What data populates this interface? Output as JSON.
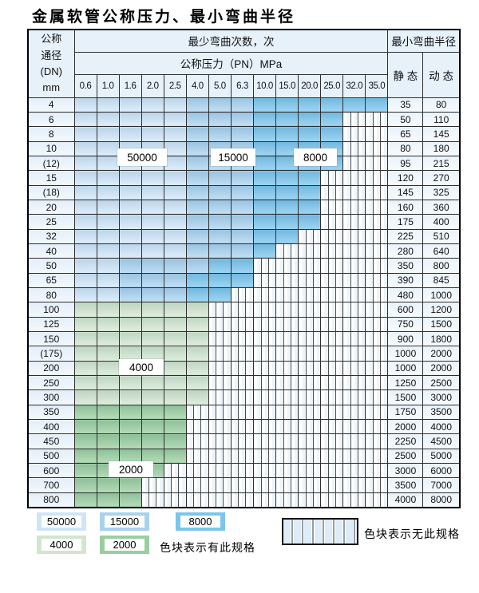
{
  "title": "金属软管公称压力、最小弯曲半径",
  "chart_data": {
    "type": "table",
    "title": "金属软管公称压力、最小弯曲半径",
    "header": {
      "id_lines": [
        "公称",
        "通径",
        "(DN)",
        "mm"
      ],
      "cycles_header": "最少弯曲次数，次",
      "pressure_header": "公称压力（PN）MPa",
      "pressure_cols": [
        "0.6",
        "1.0",
        "1.6",
        "2.0",
        "2.5",
        "4.0",
        "5.0",
        "6.3",
        "10.0",
        "15.0",
        "20.0",
        "25.0",
        "32.0",
        "35.0"
      ],
      "radius_header": "最小弯曲半径",
      "static_label": "静 态",
      "dynamic_label": "动 态"
    },
    "legend_colors": {
      "50000": "#cfe5f7",
      "15000": "#a9d2ee",
      "8000": "#7cc5ec",
      "4000": "#d2e6cf",
      "2000": "#9bce9f"
    },
    "cell_code_to_cycles": {
      "L": "50000",
      "M": "15000",
      "D": "8000",
      "G": "4000",
      "E": "2000",
      "H": "none"
    },
    "region_labels": [
      {
        "text": "50000"
      },
      {
        "text": "15000"
      },
      {
        "text": "8000"
      },
      {
        "text": "4000"
      },
      {
        "text": "2000"
      }
    ],
    "rows": [
      {
        "dn": "4",
        "cells": "LLLLLMMMDDDDDD",
        "static": "35",
        "dynamic": "80"
      },
      {
        "dn": "6",
        "cells": "LLLLLMMMDDDDHH",
        "static": "50",
        "dynamic": "110"
      },
      {
        "dn": "8",
        "cells": "LLLLLMMMDDDDHH",
        "static": "65",
        "dynamic": "145"
      },
      {
        "dn": "10",
        "cells": "LLLLLMMMDDDDHH",
        "static": "80",
        "dynamic": "180"
      },
      {
        "dn": "(12)",
        "cells": "LLLLLMMMDDDDHH",
        "static": "95",
        "dynamic": "215"
      },
      {
        "dn": "15",
        "cells": "LLLLLMMMDDDHHH",
        "static": "120",
        "dynamic": "270"
      },
      {
        "dn": "(18)",
        "cells": "LLLLLMMMDDDHHH",
        "static": "145",
        "dynamic": "325"
      },
      {
        "dn": "20",
        "cells": "LLLLLMMMDDDHHH",
        "static": "160",
        "dynamic": "360"
      },
      {
        "dn": "25",
        "cells": "LLLLLMMMDDDHHH",
        "static": "175",
        "dynamic": "400"
      },
      {
        "dn": "32",
        "cells": "LLLLLMMMDDHHHH",
        "static": "225",
        "dynamic": "510"
      },
      {
        "dn": "40",
        "cells": "LLLLLMMMDHHHHH",
        "static": "280",
        "dynamic": "640"
      },
      {
        "dn": "50",
        "cells": "LLMMMMDDHHHHHH",
        "static": "350",
        "dynamic": "800"
      },
      {
        "dn": "65",
        "cells": "LLMMMDDDHHHHHH",
        "static": "390",
        "dynamic": "845"
      },
      {
        "dn": "80",
        "cells": "LLMMMDDHHHHHHH",
        "static": "480",
        "dynamic": "1000"
      },
      {
        "dn": "100",
        "cells": "GGGGGGHHHHHHHH",
        "static": "600",
        "dynamic": "1200"
      },
      {
        "dn": "125",
        "cells": "GGGGGGHHHHHHHH",
        "static": "750",
        "dynamic": "1500"
      },
      {
        "dn": "150",
        "cells": "GGGGGGHHHHHHHH",
        "static": "900",
        "dynamic": "1800"
      },
      {
        "dn": "(175)",
        "cells": "GGGGGGHHHHHHHH",
        "static": "1000",
        "dynamic": "2000"
      },
      {
        "dn": "200",
        "cells": "GGGGGGHHHHHHHH",
        "static": "1000",
        "dynamic": "2000"
      },
      {
        "dn": "250",
        "cells": "GGGGGGHHHHHHHH",
        "static": "1250",
        "dynamic": "2500"
      },
      {
        "dn": "300",
        "cells": "GGGGGGHHHHHHHH",
        "static": "1500",
        "dynamic": "3000"
      },
      {
        "dn": "350",
        "cells": "EEEEEHHHHHHHHH",
        "static": "1750",
        "dynamic": "3500"
      },
      {
        "dn": "400",
        "cells": "EEEEEHHHHHHHHH",
        "static": "2000",
        "dynamic": "4000"
      },
      {
        "dn": "450",
        "cells": "EEEEEHHHHHHHHH",
        "static": "2250",
        "dynamic": "4500"
      },
      {
        "dn": "500",
        "cells": "EEEEEHHHHHHHHH",
        "static": "2500",
        "dynamic": "5000"
      },
      {
        "dn": "600",
        "cells": "EEEEHHHHHHHHHH",
        "static": "3000",
        "dynamic": "6000"
      },
      {
        "dn": "700",
        "cells": "EEEHHHHHHHHHHH",
        "static": "3500",
        "dynamic": "7000"
      },
      {
        "dn": "800",
        "cells": "EEEHHHHHHHHHHH",
        "static": "4000",
        "dynamic": "8000"
      }
    ],
    "legend": {
      "items": [
        {
          "label": "50000"
        },
        {
          "label": "15000"
        },
        {
          "label": "8000"
        },
        {
          "label": "4000"
        },
        {
          "label": "2000"
        }
      ],
      "has_spec_text": "色块表示有此规格",
      "no_spec_text": "色块表示无此规格"
    }
  }
}
